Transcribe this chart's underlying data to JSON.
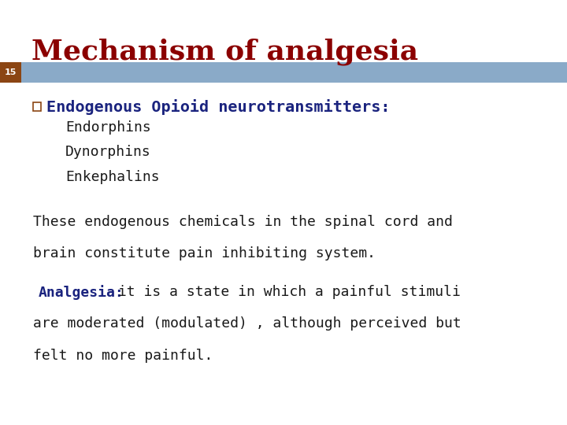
{
  "title": "Mechanism of analgesia",
  "title_color": "#8B0000",
  "title_fontsize": 26,
  "slide_number": "15",
  "slide_number_color": "#ffffff",
  "header_bar_color": "#8aaac8",
  "number_bar_color": "#8B4513",
  "background_color": "#ffffff",
  "bullet_heading": "Endogenous Opioid neurotransmitters:",
  "bullet_heading_color": "#1a237e",
  "bullet_heading_fontsize": 14.5,
  "bullet_items": [
    "Endorphins",
    "Dynorphins",
    "Enkephalins"
  ],
  "bullet_item_color": "#1a1a1a",
  "bullet_item_fontsize": 13,
  "body_text1_line1": "These endogenous chemicals in the spinal cord and",
  "body_text1_line2": "brain constitute pain inhibiting system.",
  "body_text1_color": "#1a1a1a",
  "body_text1_fontsize": 13,
  "analgesia_label": "Analgesia:",
  "analgesia_label_color": "#1a237e",
  "analgesia_label_fontsize": 13,
  "body_text2_line1": " it is a state in which a painful stimuli",
  "body_text2_line2": "are moderated (modulated) , although perceived but",
  "body_text2_line3": "felt no more painful.",
  "body_text2_color": "#1a1a1a",
  "body_text2_fontsize": 13,
  "checkbox_color": "#8B4513"
}
